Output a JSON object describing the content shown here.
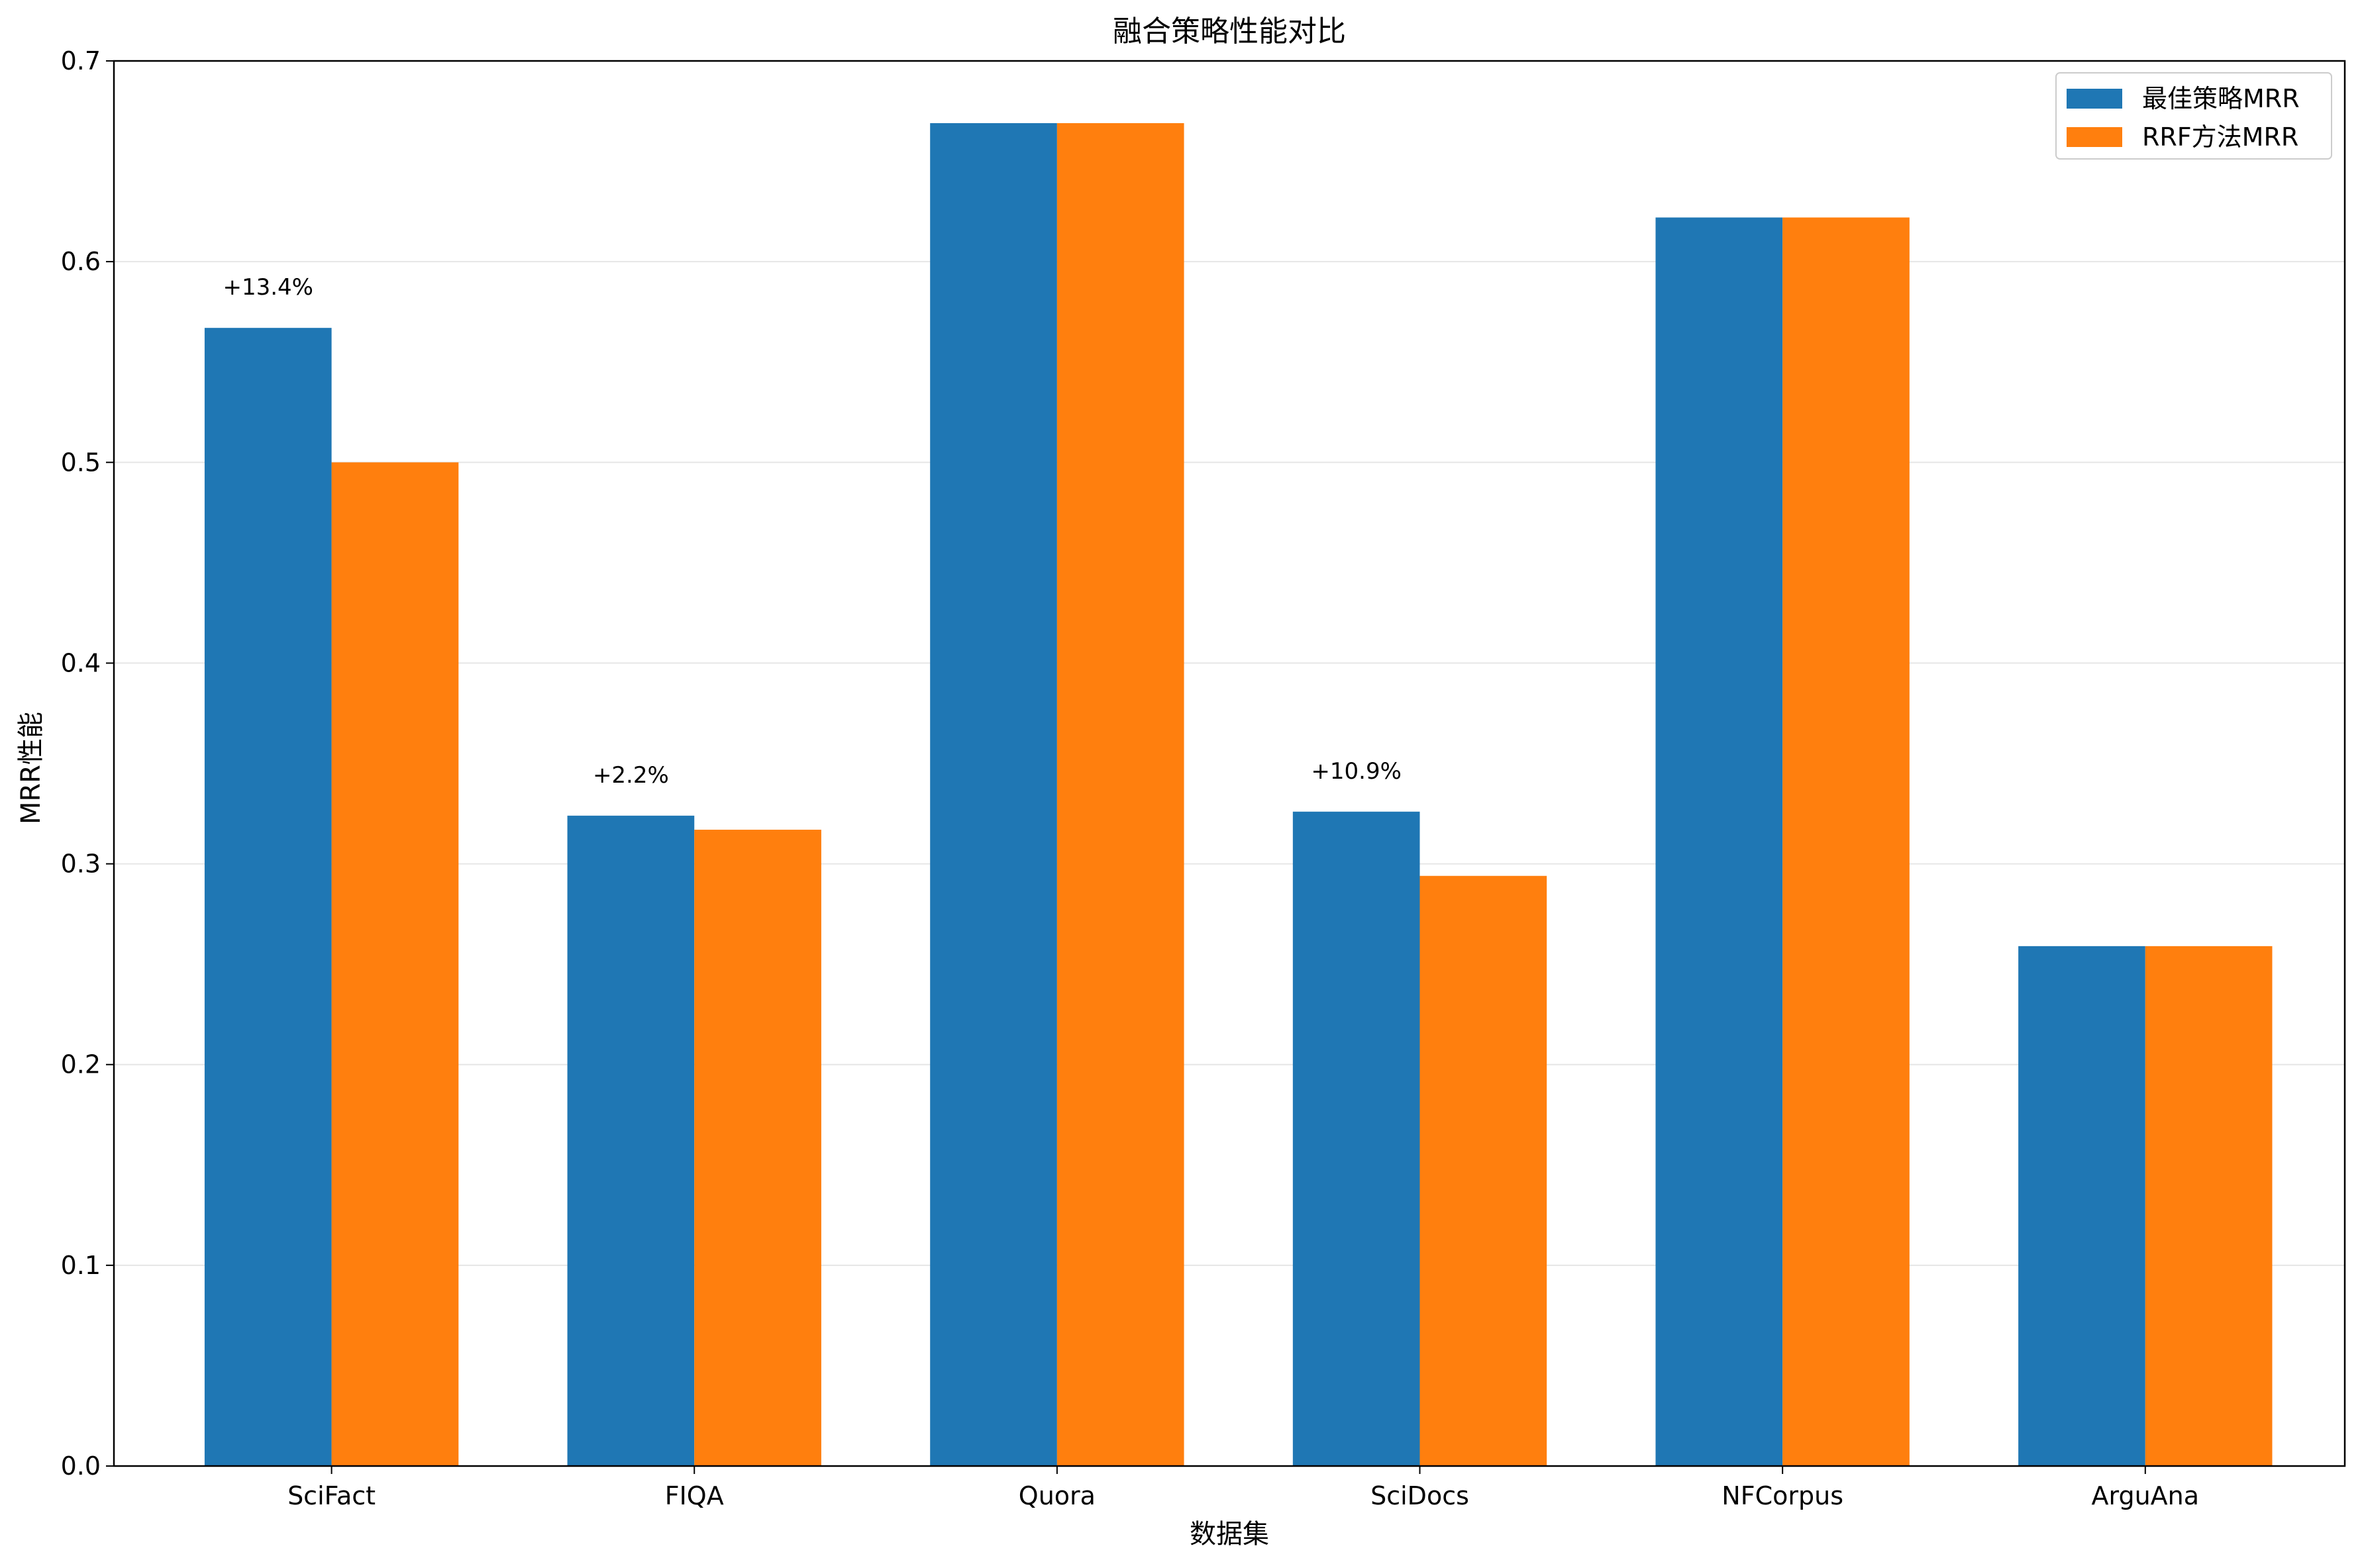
{
  "chart_data": {
    "type": "bar",
    "title": "融合策略性能对比",
    "xlabel": "数据集",
    "ylabel": "MRR性能",
    "categories": [
      "SciFact",
      "FIQA",
      "Quora",
      "SciDocs",
      "NFCorpus",
      "ArguAna"
    ],
    "series": [
      {
        "name": "最佳策略MRR",
        "color": "#1f77b4",
        "values": [
          0.567,
          0.324,
          0.669,
          0.326,
          0.622,
          0.259
        ]
      },
      {
        "name": "RRF方法MRR",
        "color": "#ff7f0e",
        "values": [
          0.5,
          0.317,
          0.669,
          0.294,
          0.622,
          0.259
        ]
      }
    ],
    "annotations": [
      "+13.4%",
      "+2.2%",
      "",
      "+10.9%",
      "",
      ""
    ],
    "ylim": [
      0,
      0.7
    ],
    "yticks": [
      "0.0",
      "0.1",
      "0.2",
      "0.3",
      "0.4",
      "0.5",
      "0.6",
      "0.7"
    ],
    "grid": "y",
    "legend_position": "top-right"
  }
}
